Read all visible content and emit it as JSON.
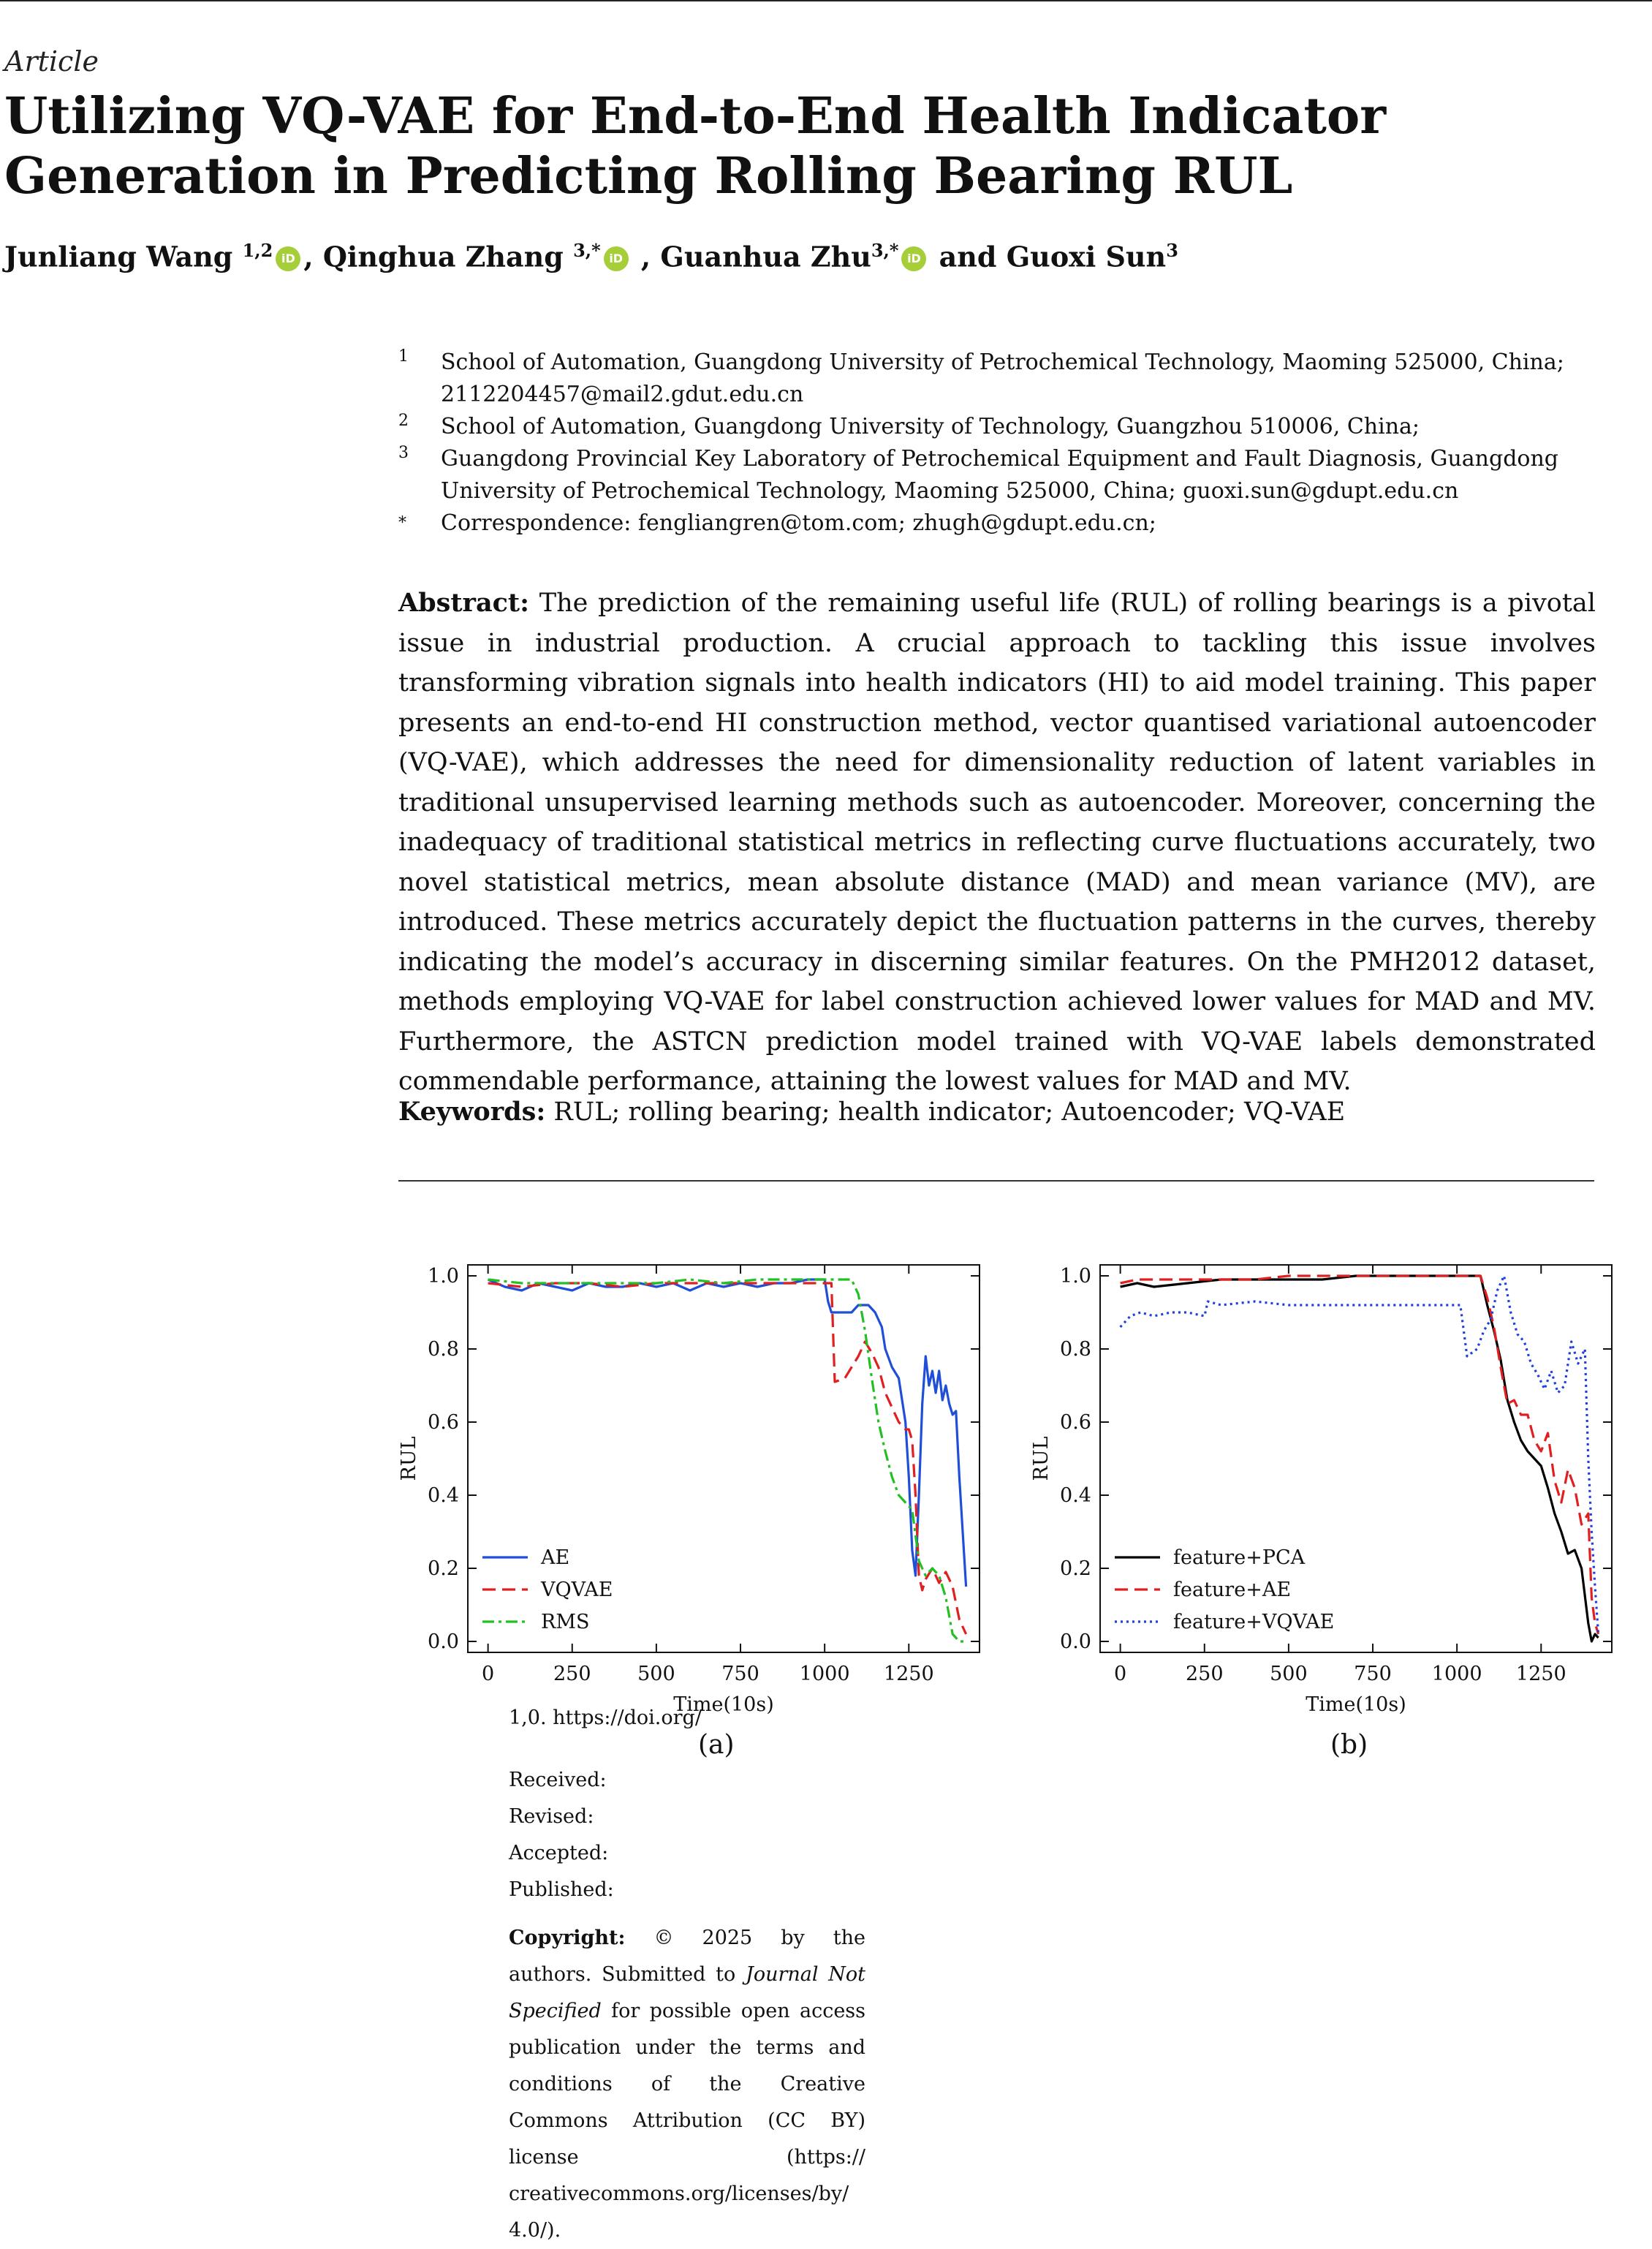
{
  "header": {
    "article_type": "Article",
    "title": "Utilizing VQ-VAE for End-to-End Health Indicator Generation in Predicting Rolling Bearing RUL"
  },
  "authors": [
    {
      "name": "Junliang Wang",
      "sup": "1,2",
      "orcid": true
    },
    {
      "name": "Qinghua Zhang",
      "sup": "3,*",
      "orcid": true
    },
    {
      "name": "Guanhua Zhu",
      "sup": "3,*",
      "orcid": true
    },
    {
      "name": "Guoxi Sun",
      "sup": "3",
      "orcid": false
    }
  ],
  "author_separators": [
    ", ",
    " , ",
    " and "
  ],
  "orcid_label": "iD",
  "affiliations": [
    {
      "mark": "1",
      "text": "School of Automation, Guangdong University of Petrochemical Technology, Maoming 525000, China; 2112204457@mail2.gdut.edu.cn"
    },
    {
      "mark": "2",
      "text": "School of Automation, Guangdong University of Technology, Guangzhou 510006, China;"
    },
    {
      "mark": "3",
      "text": "Guangdong Provincial Key Laboratory of Petrochemical Equipment and Fault Diagnosis, Guangdong University of Petrochemical Technology, Maoming 525000, China; guoxi.sun@gdupt.edu.cn"
    },
    {
      "mark": "*",
      "text": "Correspondence: fengliangren@tom.com; zhugh@gdupt.edu.cn;"
    }
  ],
  "abstract": {
    "lead": "Abstract:",
    "text": "The prediction of the remaining useful life (RUL) of rolling bearings is a pivotal issue in industrial production. A crucial approach to tackling this issue involves transforming vibration signals into health indicators (HI) to aid model training. This paper presents an end-to-end HI construction method, vector quantised variational autoencoder (VQ-VAE), which addresses the need for dimensionality reduction of latent variables in traditional unsupervised learning methods such as autoencoder. Moreover, concerning the inadequacy of traditional statistical metrics in reflecting curve fluctuations accurately, two novel statistical metrics, mean absolute distance (MAD) and mean variance (MV), are introduced. These metrics accurately depict the fluctuation patterns in the curves, thereby indicating the model’s accuracy in discerning similar features. On the PMH2012 dataset, methods employing VQ-VAE for label construction achieved lower values for MAD and MV. Furthermore, the ASTCN prediction model trained with VQ-VAE labels demonstrated commendable performance, attaining the lowest values for MAD and MV."
  },
  "keywords": {
    "lead": "Keywords:",
    "text": "RUL; rolling bearing; health indicator; Autoencoder; VQ-VAE"
  },
  "sidebar": {
    "doi_fragment": "1,0. https://doi.org/",
    "received": "Received:",
    "revised": "Revised:",
    "accepted": "Accepted:",
    "published": "Published:",
    "copyright_lead": "Copyright:",
    "copyright_text_1": "© 2025 by the authors. Submitted to",
    "journal": "Journal Not Specified",
    "copyright_text_2": "for possible open access publication under the terms and conditions of the Creative Commons Attribution (CC BY) license (https:// creativecommons.org/licenses/by/ 4.0/)."
  },
  "chart_data": [
    {
      "type": "line",
      "panel": "(a)",
      "xlabel": "Time(10s)",
      "ylabel": "RUL",
      "xlim": [
        -60,
        1460
      ],
      "ylim": [
        -0.03,
        1.03
      ],
      "xticks": [
        0,
        250,
        500,
        750,
        1000,
        1250
      ],
      "yticks": [
        0.0,
        0.2,
        0.4,
        0.6,
        0.8,
        1.0
      ],
      "legend": "lower-left",
      "series": [
        {
          "name": "AE",
          "color": "#1f4fd8",
          "dash": "solid",
          "x": [
            0,
            50,
            100,
            150,
            200,
            250,
            300,
            350,
            400,
            450,
            500,
            550,
            600,
            650,
            700,
            750,
            800,
            850,
            900,
            950,
            1000,
            1010,
            1020,
            1060,
            1080,
            1100,
            1130,
            1150,
            1170,
            1180,
            1200,
            1220,
            1240,
            1250,
            1260,
            1270,
            1280,
            1290,
            1300,
            1310,
            1320,
            1330,
            1340,
            1350,
            1360,
            1370,
            1380,
            1390,
            1400,
            1410,
            1420
          ],
          "y": [
            0.99,
            0.97,
            0.96,
            0.98,
            0.97,
            0.96,
            0.98,
            0.97,
            0.97,
            0.98,
            0.97,
            0.98,
            0.96,
            0.98,
            0.97,
            0.98,
            0.97,
            0.98,
            0.98,
            0.99,
            0.99,
            0.93,
            0.9,
            0.9,
            0.9,
            0.92,
            0.92,
            0.9,
            0.86,
            0.8,
            0.75,
            0.72,
            0.6,
            0.45,
            0.25,
            0.18,
            0.4,
            0.65,
            0.78,
            0.7,
            0.74,
            0.68,
            0.74,
            0.66,
            0.7,
            0.65,
            0.62,
            0.63,
            0.45,
            0.3,
            0.15
          ]
        },
        {
          "name": "VQVAE",
          "color": "#e02020",
          "dash": "dashed",
          "x": [
            0,
            100,
            200,
            300,
            400,
            500,
            600,
            700,
            800,
            900,
            1000,
            1020,
            1030,
            1060,
            1080,
            1100,
            1120,
            1140,
            1160,
            1180,
            1200,
            1220,
            1240,
            1250,
            1260,
            1270,
            1280,
            1290,
            1300,
            1320,
            1340,
            1360,
            1380,
            1400,
            1420
          ],
          "y": [
            0.98,
            0.97,
            0.98,
            0.98,
            0.97,
            0.98,
            0.98,
            0.98,
            0.98,
            0.98,
            0.98,
            0.98,
            0.71,
            0.72,
            0.75,
            0.78,
            0.82,
            0.79,
            0.75,
            0.68,
            0.64,
            0.6,
            0.58,
            0.58,
            0.55,
            0.4,
            0.18,
            0.14,
            0.17,
            0.2,
            0.16,
            0.19,
            0.15,
            0.06,
            0.02
          ]
        },
        {
          "name": "RMS",
          "color": "#22c022",
          "dash": "dashdot",
          "x": [
            0,
            100,
            200,
            300,
            400,
            500,
            600,
            700,
            800,
            900,
            1000,
            1050,
            1080,
            1100,
            1120,
            1140,
            1160,
            1180,
            1200,
            1220,
            1240,
            1260,
            1280,
            1300,
            1320,
            1340,
            1360,
            1380,
            1400,
            1420
          ],
          "y": [
            0.99,
            0.98,
            0.98,
            0.98,
            0.98,
            0.98,
            0.99,
            0.98,
            0.99,
            0.99,
            0.99,
            0.99,
            0.99,
            0.95,
            0.85,
            0.72,
            0.6,
            0.52,
            0.45,
            0.4,
            0.38,
            0.36,
            0.22,
            0.18,
            0.2,
            0.18,
            0.12,
            0.02,
            0.0,
            0.0
          ]
        }
      ]
    },
    {
      "type": "line",
      "panel": "(b)",
      "xlabel": "Time(10s)",
      "ylabel": "RUL",
      "xlim": [
        -60,
        1460
      ],
      "ylim": [
        -0.03,
        1.03
      ],
      "xticks": [
        0,
        250,
        500,
        750,
        1000,
        1250
      ],
      "yticks": [
        0.0,
        0.2,
        0.4,
        0.6,
        0.8,
        1.0
      ],
      "legend": "lower-left",
      "series": [
        {
          "name": "feature+PCA",
          "color": "#000000",
          "dash": "solid",
          "x": [
            0,
            50,
            100,
            200,
            300,
            400,
            500,
            600,
            700,
            800,
            900,
            1000,
            1070,
            1090,
            1110,
            1130,
            1150,
            1170,
            1190,
            1210,
            1230,
            1250,
            1270,
            1290,
            1310,
            1330,
            1350,
            1370,
            1390,
            1400,
            1410,
            1420
          ],
          "y": [
            0.97,
            0.98,
            0.97,
            0.98,
            0.99,
            0.99,
            0.99,
            0.99,
            1.0,
            1.0,
            1.0,
            1.0,
            1.0,
            0.92,
            0.85,
            0.77,
            0.66,
            0.6,
            0.55,
            0.52,
            0.5,
            0.48,
            0.42,
            0.35,
            0.3,
            0.24,
            0.25,
            0.2,
            0.05,
            0.0,
            0.02,
            0.01
          ]
        },
        {
          "name": "feature+AE",
          "color": "#e02020",
          "dash": "dashed",
          "x": [
            0,
            50,
            100,
            200,
            300,
            400,
            500,
            600,
            700,
            800,
            900,
            1000,
            1070,
            1090,
            1110,
            1130,
            1150,
            1170,
            1190,
            1210,
            1230,
            1250,
            1270,
            1290,
            1310,
            1330,
            1350,
            1370,
            1390,
            1400,
            1410,
            1420
          ],
          "y": [
            0.98,
            0.99,
            0.99,
            0.99,
            0.99,
            0.99,
            1.0,
            1.0,
            1.0,
            1.0,
            1.0,
            1.0,
            1.0,
            0.94,
            0.86,
            0.75,
            0.65,
            0.66,
            0.62,
            0.62,
            0.55,
            0.52,
            0.57,
            0.44,
            0.38,
            0.47,
            0.42,
            0.32,
            0.35,
            0.12,
            0.05,
            0.02
          ]
        },
        {
          "name": "feature+VQVAE",
          "color": "#1f3fe0",
          "dash": "dotted",
          "x": [
            0,
            30,
            60,
            100,
            150,
            200,
            250,
            260,
            300,
            400,
            500,
            600,
            700,
            800,
            900,
            1000,
            1010,
            1030,
            1060,
            1080,
            1100,
            1120,
            1140,
            1160,
            1180,
            1200,
            1220,
            1240,
            1260,
            1280,
            1300,
            1320,
            1340,
            1360,
            1380,
            1390,
            1400,
            1410,
            1420
          ],
          "y": [
            0.86,
            0.89,
            0.9,
            0.89,
            0.9,
            0.9,
            0.89,
            0.93,
            0.92,
            0.93,
            0.92,
            0.92,
            0.92,
            0.92,
            0.92,
            0.92,
            0.92,
            0.78,
            0.8,
            0.85,
            0.88,
            0.96,
            1.0,
            0.9,
            0.84,
            0.82,
            0.76,
            0.73,
            0.69,
            0.74,
            0.68,
            0.7,
            0.82,
            0.76,
            0.8,
            0.5,
            0.3,
            0.15,
            0.02
          ]
        }
      ]
    }
  ]
}
